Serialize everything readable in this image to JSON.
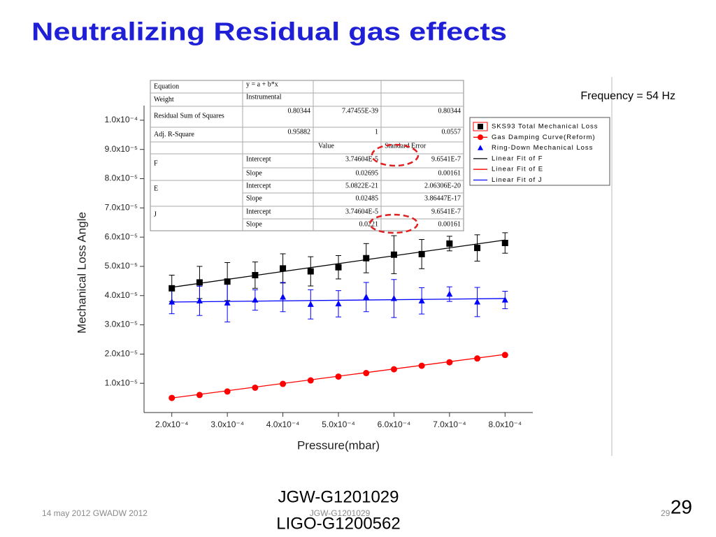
{
  "slide_title": "Neutralizing Residual gas effects",
  "chart_data": {
    "type": "scatter",
    "x_label": "Pressure(mbar)",
    "y_label": "Mechanical Loss Angle",
    "annotation": "Frequency = 54 Hz",
    "x": [
      0.0002,
      0.00025,
      0.0003,
      0.00035,
      0.0004,
      0.00045,
      0.0005,
      0.00055,
      0.0006,
      0.00065,
      0.0007,
      0.00075,
      0.0008
    ],
    "series": [
      {
        "name": "SKS93 Total Mechanical Loss",
        "color": "#000000",
        "marker": "square",
        "values": [
          4.25e-05,
          4.45e-05,
          4.48e-05,
          4.7e-05,
          4.93e-05,
          4.83e-05,
          4.97e-05,
          5.28e-05,
          5.4e-05,
          5.42e-05,
          5.78e-05,
          5.63e-05,
          5.8e-05
        ],
        "errors": [
          4.5e-06,
          5.5e-06,
          6.5e-06,
          4.5e-06,
          5e-06,
          5e-06,
          4e-06,
          5e-06,
          6.5e-06,
          5e-06,
          2.5e-06,
          4.5e-06,
          3.5e-06
        ]
      },
      {
        "name": "Gas Damping Curve(Reform)",
        "color": "#ff0000",
        "marker": "circle",
        "values": [
          5e-06,
          6e-06,
          7.2e-06,
          8.5e-06,
          9.8e-06,
          1.1e-05,
          1.23e-05,
          1.35e-05,
          1.48e-05,
          1.6e-05,
          1.72e-05,
          1.85e-05,
          1.97e-05
        ]
      },
      {
        "name": "Ring-Down Mechanical Loss",
        "color": "#0000ff",
        "marker": "triangle",
        "values": [
          3.78e-05,
          3.82e-05,
          3.75e-05,
          3.85e-05,
          3.95e-05,
          3.7e-05,
          3.72e-05,
          3.95e-05,
          3.9e-05,
          3.82e-05,
          4.05e-05,
          3.78e-05,
          3.85e-05
        ],
        "errors": [
          4e-06,
          5e-06,
          6.5e-06,
          3.5e-06,
          5e-06,
          5e-06,
          4.5e-06,
          5e-06,
          6.5e-06,
          4.5e-06,
          2.5e-06,
          5e-06,
          3e-06
        ]
      }
    ],
    "fits": [
      {
        "name": "Linear Fit of F",
        "color": "#000000",
        "x": [
          0.0002,
          0.0008
        ],
        "values": [
          4.285e-05,
          5.902e-05
        ]
      },
      {
        "name": "Linear Fit of E",
        "color": "#ff0000",
        "x": [
          0.0002,
          0.0008
        ],
        "values": [
          4.97e-06,
          1.988e-05
        ]
      },
      {
        "name": "Linear Fit of J",
        "color": "#0000ff",
        "x": [
          0.0002,
          0.0008
        ],
        "values": [
          3.78e-05,
          3.9e-05
        ]
      }
    ],
    "xlim": [
      0.00015,
      0.00085
    ],
    "ylim": [
      0,
      0.000105
    ],
    "xticks": [
      {
        "value": 0.0002,
        "label": "2.0x10⁻⁴"
      },
      {
        "value": 0.0003,
        "label": "3.0x10⁻⁴"
      },
      {
        "value": 0.0004,
        "label": "4.0x10⁻⁴"
      },
      {
        "value": 0.0005,
        "label": "5.0x10⁻⁴"
      },
      {
        "value": 0.0006,
        "label": "6.0x10⁻⁴"
      },
      {
        "value": 0.0007,
        "label": "7.0x10⁻⁴"
      },
      {
        "value": 0.0008,
        "label": "8.0x10⁻⁴"
      }
    ],
    "yticks": [
      {
        "value": 1e-05,
        "label": "1.0x10⁻⁵"
      },
      {
        "value": 2e-05,
        "label": "2.0x10⁻⁵"
      },
      {
        "value": 3e-05,
        "label": "3.0x10⁻⁵"
      },
      {
        "value": 4e-05,
        "label": "4.0x10⁻⁵"
      },
      {
        "value": 5e-05,
        "label": "5.0x10⁻⁵"
      },
      {
        "value": 6e-05,
        "label": "6.0x10⁻⁵"
      },
      {
        "value": 7e-05,
        "label": "7.0x10⁻⁵"
      },
      {
        "value": 8e-05,
        "label": "8.0x10⁻⁵"
      },
      {
        "value": 9e-05,
        "label": "9.0x10⁻⁵"
      },
      {
        "value": 0.0001,
        "label": "1.0x10⁻⁴"
      }
    ],
    "legend": "upper right",
    "fit_table": {
      "rows": [
        [
          "Equation",
          "y = a + b*x"
        ],
        [
          "Weight",
          "Instrumental"
        ],
        [
          "Residual Sum of Squares",
          "0.80344",
          "7.47455E-39",
          "0.80344"
        ],
        [
          "Adj. R-Square",
          "0.95882",
          "1",
          "0.0557"
        ]
      ],
      "header": [
        "Value",
        "Standard Error"
      ],
      "groups": [
        {
          "name": "F",
          "rows": [
            [
              "Intercept",
              "3.74604E-5",
              "9.6541E-7"
            ],
            [
              "Slope",
              "0.02695",
              "0.00161"
            ]
          ]
        },
        {
          "name": "E",
          "rows": [
            [
              "Intercept",
              "5.0822E-21",
              "2.06306E-20"
            ],
            [
              "Slope",
              "0.02485",
              "3.86447E-17"
            ]
          ]
        },
        {
          "name": "J",
          "rows": [
            [
              "Intercept",
              "3.74604E-5",
              "9.6541E-7"
            ],
            [
              "Slope",
              "0.0221",
              "0.00161"
            ]
          ]
        }
      ]
    }
  },
  "footer": {
    "date": "14 may 2012 GWADW 2012",
    "doc_small": "JGW-G1201029",
    "page_small": "29",
    "page": "29",
    "doc_ids": [
      "JGW-G1201029",
      "LIGO-G1200562"
    ]
  }
}
